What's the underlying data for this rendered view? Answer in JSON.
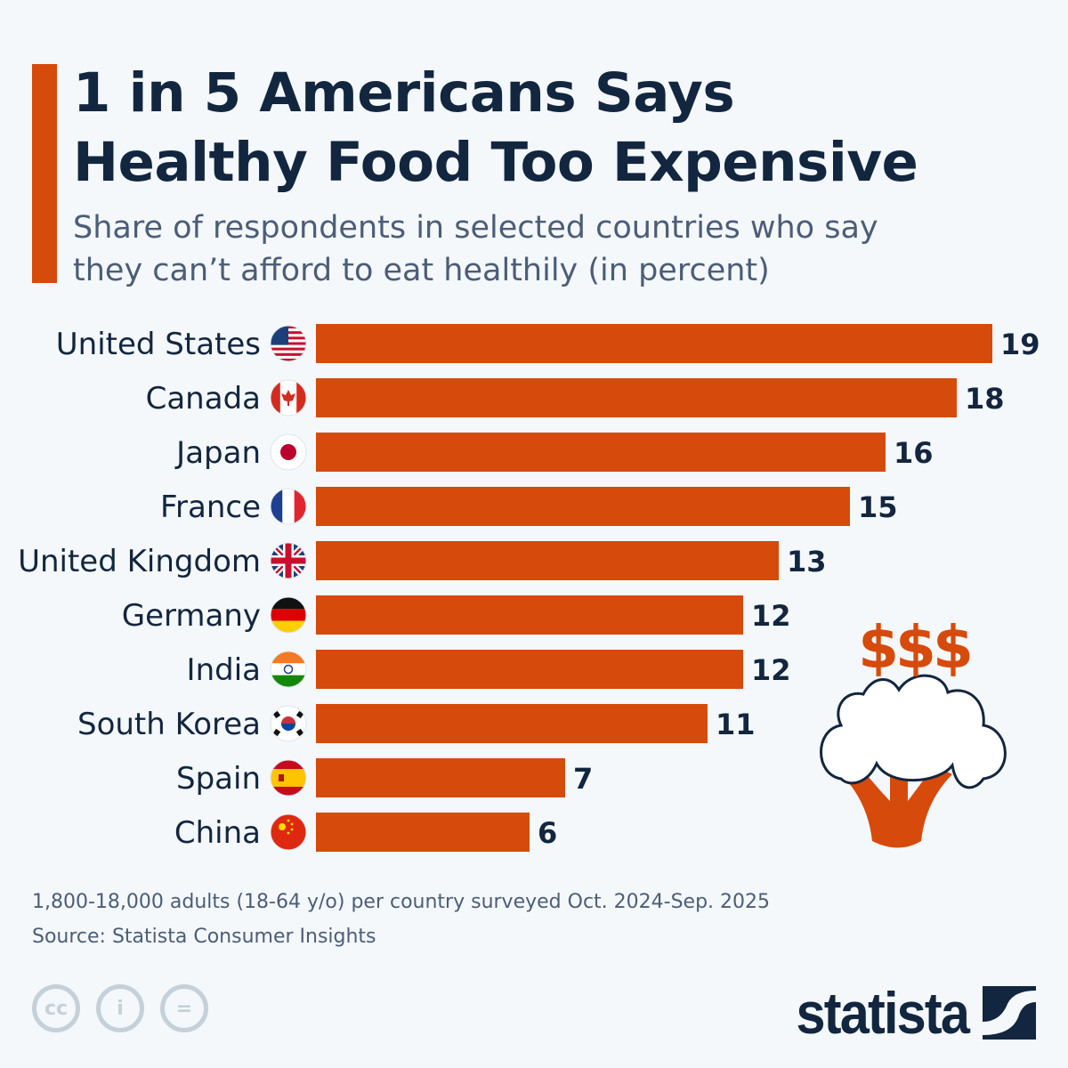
{
  "title_line1": "1 in 5 Americans Says",
  "title_line2": "Healthy Food Too Expensive",
  "subtitle_line1": "Share of respondents in selected countries who say",
  "subtitle_line2": "they can’t afford to eat healthily (in percent)",
  "colors": {
    "bar": "#d64a0c",
    "text": "#13263f",
    "accent": "#d64a0c"
  },
  "chart_data": {
    "type": "bar",
    "orientation": "horizontal",
    "categories": [
      "United States",
      "Canada",
      "Japan",
      "France",
      "United Kingdom",
      "Germany",
      "India",
      "South Korea",
      "Spain",
      "China"
    ],
    "flags": [
      "us",
      "ca",
      "jp",
      "fr",
      "gb",
      "de",
      "in",
      "kr",
      "es",
      "cn"
    ],
    "values": [
      19,
      18,
      16,
      15,
      13,
      12,
      12,
      11,
      7,
      6
    ],
    "xlim": [
      0,
      19
    ],
    "grid": false,
    "data_labels": true
  },
  "illustration": {
    "icon": "broccoli-with-dollar-signs",
    "text": "$$$"
  },
  "footer": {
    "note": "1,800-18,000 adults (18-64 y/o) per country surveyed Oct. 2024-Sep. 2025",
    "source": "Source: Statista Consumer Insights",
    "license_icons": [
      "cc",
      "by",
      "nd"
    ],
    "brand": "statista"
  }
}
